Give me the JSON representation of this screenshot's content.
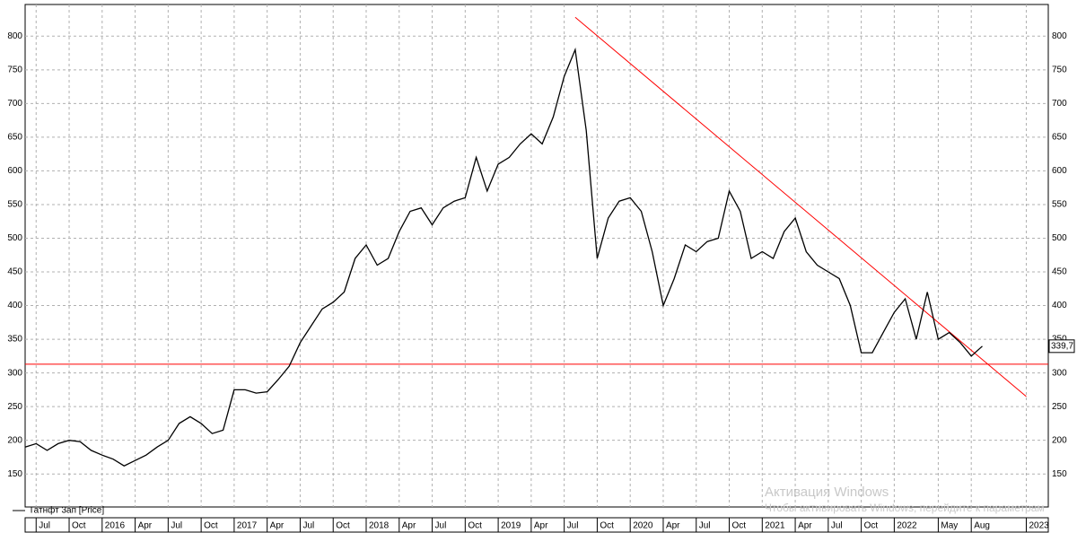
{
  "chart_data": {
    "type": "line",
    "legend": "Татнфт 3ап [Price]",
    "watermark": {
      "title": "Активация Windows",
      "text": "Чтобы активировать Windows, перейдите к параметрам"
    },
    "x": [
      "2015-06",
      "2015-07",
      "2015-08",
      "2015-09",
      "2015-10",
      "2015-11",
      "2015-12",
      "2016-01",
      "2016-02",
      "2016-03",
      "2016-04",
      "2016-05",
      "2016-06",
      "2016-07",
      "2016-08",
      "2016-09",
      "2016-10",
      "2016-11",
      "2016-12",
      "2017-01",
      "2017-02",
      "2017-03",
      "2017-04",
      "2017-05",
      "2017-06",
      "2017-07",
      "2017-08",
      "2017-09",
      "2017-10",
      "2017-11",
      "2017-12",
      "2018-01",
      "2018-02",
      "2018-03",
      "2018-04",
      "2018-05",
      "2018-06",
      "2018-07",
      "2018-08",
      "2018-09",
      "2018-10",
      "2018-11",
      "2018-12",
      "2019-01",
      "2019-02",
      "2019-03",
      "2019-04",
      "2019-05",
      "2019-06",
      "2019-07",
      "2019-08",
      "2019-09",
      "2019-10",
      "2019-11",
      "2019-12",
      "2020-01",
      "2020-02",
      "2020-03",
      "2020-04",
      "2020-05",
      "2020-06",
      "2020-07",
      "2020-08",
      "2020-09",
      "2020-10",
      "2020-11",
      "2020-12",
      "2021-01",
      "2021-02",
      "2021-03",
      "2021-04",
      "2021-05",
      "2021-06",
      "2021-07",
      "2021-08",
      "2021-09",
      "2021-10",
      "2021-11",
      "2021-12",
      "2022-01",
      "2022-02",
      "2022-03",
      "2022-04",
      "2022-05",
      "2022-06",
      "2022-07",
      "2022-08",
      "2022-09"
    ],
    "series": [
      {
        "name": "Татнфт 3ап [Price]",
        "color": "#000000",
        "values": [
          190,
          195,
          185,
          195,
          200,
          198,
          185,
          178,
          172,
          162,
          170,
          178,
          190,
          200,
          225,
          235,
          225,
          210,
          215,
          275,
          275,
          270,
          272,
          290,
          310,
          345,
          370,
          395,
          405,
          420,
          470,
          490,
          460,
          470,
          510,
          540,
          545,
          520,
          545,
          555,
          560,
          620,
          570,
          610,
          620,
          640,
          655,
          640,
          680,
          740,
          780,
          660,
          470,
          530,
          555,
          560,
          540,
          480,
          400,
          440,
          490,
          480,
          495,
          500,
          570,
          540,
          470,
          480,
          470,
          510,
          530,
          480,
          460,
          450,
          440,
          400,
          330,
          330,
          360,
          390,
          410,
          350,
          420,
          350,
          360,
          345,
          325,
          339.7
        ]
      }
    ],
    "last_price": {
      "value": 339.7,
      "label": "339,7"
    },
    "hlines": [
      {
        "y": 313,
        "color": "#ff0000"
      }
    ],
    "trendlines": [
      {
        "x": [
          "2019-08",
          "2023-01"
        ],
        "y": [
          828,
          265
        ],
        "color": "#ff0000"
      }
    ],
    "xlim": [
      "2015-06",
      "2023-03"
    ],
    "xticks": [
      {
        "value": "2015-07",
        "label": "Jul"
      },
      {
        "value": "2015-10",
        "label": "Oct"
      },
      {
        "value": "2016-01",
        "label": "2016"
      },
      {
        "value": "2016-04",
        "label": "Apr"
      },
      {
        "value": "2016-07",
        "label": "Jul"
      },
      {
        "value": "2016-10",
        "label": "Oct"
      },
      {
        "value": "2017-01",
        "label": "2017"
      },
      {
        "value": "2017-04",
        "label": "Apr"
      },
      {
        "value": "2017-07",
        "label": "Jul"
      },
      {
        "value": "2017-10",
        "label": "Oct"
      },
      {
        "value": "2018-01",
        "label": "2018"
      },
      {
        "value": "2018-04",
        "label": "Apr"
      },
      {
        "value": "2018-07",
        "label": "Jul"
      },
      {
        "value": "2018-10",
        "label": "Oct"
      },
      {
        "value": "2019-01",
        "label": "2019"
      },
      {
        "value": "2019-04",
        "label": "Apr"
      },
      {
        "value": "2019-07",
        "label": "Jul"
      },
      {
        "value": "2019-10",
        "label": "Oct"
      },
      {
        "value": "2020-01",
        "label": "2020"
      },
      {
        "value": "2020-04",
        "label": "Apr"
      },
      {
        "value": "2020-07",
        "label": "Jul"
      },
      {
        "value": "2020-10",
        "label": "Oct"
      },
      {
        "value": "2021-01",
        "label": "2021"
      },
      {
        "value": "2021-04",
        "label": "Apr"
      },
      {
        "value": "2021-07",
        "label": "Jul"
      },
      {
        "value": "2021-10",
        "label": "Oct"
      },
      {
        "value": "2022-01",
        "label": "2022"
      },
      {
        "value": "2022-05",
        "label": "May"
      },
      {
        "value": "2022-08",
        "label": "Aug"
      },
      {
        "value": "2023-01",
        "label": "2023"
      }
    ],
    "ylim": [
      101,
      847
    ],
    "yticks": [
      150,
      200,
      250,
      300,
      350,
      400,
      450,
      500,
      550,
      600,
      650,
      700,
      750,
      800
    ],
    "grid": true
  }
}
